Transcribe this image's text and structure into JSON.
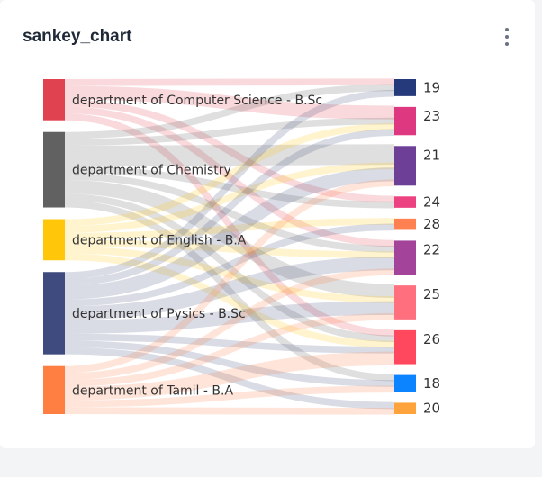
{
  "card": {
    "title": "sankey_chart",
    "menu_icon": "more-vertical-icon"
  },
  "chart_data": {
    "type": "sankey",
    "title": "sankey_chart",
    "sources": [
      {
        "name": "department of Computer Science - B.Sc",
        "color": "#e0424f"
      },
      {
        "name": "department of Chemistry",
        "color": "#616161"
      },
      {
        "name": "department of English - B.A",
        "color": "#ffc60a"
      },
      {
        "name": "department of Pysics - B.Sc",
        "color": "#3f4a7e"
      },
      {
        "name": "department of Tamil - B.A",
        "color": "#ff7f43"
      }
    ],
    "targets": [
      {
        "name": "19",
        "color": "#253a7a"
      },
      {
        "name": "23",
        "color": "#de3880"
      },
      {
        "name": "21",
        "color": "#6d3f96"
      },
      {
        "name": "24",
        "color": "#ec4282"
      },
      {
        "name": "28",
        "color": "#ff8152"
      },
      {
        "name": "22",
        "color": "#a4439a"
      },
      {
        "name": "25",
        "color": "#ff6f7d"
      },
      {
        "name": "26",
        "color": "#ff475d"
      },
      {
        "name": "18",
        "color": "#0d84ff"
      },
      {
        "name": "20",
        "color": "#ffa43c"
      }
    ],
    "links": [
      {
        "source": "department of Computer Science - B.Sc",
        "target": "19",
        "value": 0.5
      },
      {
        "source": "department of Computer Science - B.Sc",
        "target": "23",
        "value": 1
      },
      {
        "source": "department of Computer Science - B.Sc",
        "target": "24",
        "value": 0.5
      },
      {
        "source": "department of Computer Science - B.Sc",
        "target": "22",
        "value": 0.5
      },
      {
        "source": "department of Computer Science - B.Sc",
        "target": "26",
        "value": 0.5
      },
      {
        "source": "department of Chemistry",
        "target": "19",
        "value": 0.5
      },
      {
        "source": "department of Chemistry",
        "target": "23",
        "value": 0.5
      },
      {
        "source": "department of Chemistry",
        "target": "21",
        "value": 1.5
      },
      {
        "source": "department of Chemistry",
        "target": "24",
        "value": 0.5
      },
      {
        "source": "department of Chemistry",
        "target": "22",
        "value": 0.5
      },
      {
        "source": "department of Chemistry",
        "target": "25",
        "value": 1
      },
      {
        "source": "department of Chemistry",
        "target": "26",
        "value": 0.5
      },
      {
        "source": "department of Chemistry",
        "target": "18",
        "value": 0.5
      },
      {
        "source": "department of English - B.A",
        "target": "23",
        "value": 0.5
      },
      {
        "source": "department of English - B.A",
        "target": "21",
        "value": 0.5
      },
      {
        "source": "department of English - B.A",
        "target": "28",
        "value": 0.5
      },
      {
        "source": "department of English - B.A",
        "target": "22",
        "value": 0.5
      },
      {
        "source": "department of English - B.A",
        "target": "25",
        "value": 0.5
      },
      {
        "source": "department of English - B.A",
        "target": "26",
        "value": 0.5
      },
      {
        "source": "department of Pysics - B.Sc",
        "target": "19",
        "value": 0.5
      },
      {
        "source": "department of Pysics - B.Sc",
        "target": "23",
        "value": 0.5
      },
      {
        "source": "department of Pysics - B.Sc",
        "target": "21",
        "value": 1
      },
      {
        "source": "department of Pysics - B.Sc",
        "target": "28",
        "value": 0.5
      },
      {
        "source": "department of Pysics - B.Sc",
        "target": "22",
        "value": 1
      },
      {
        "source": "department of Pysics - B.Sc",
        "target": "25",
        "value": 1
      },
      {
        "source": "department of Pysics - B.Sc",
        "target": "26",
        "value": 0.5
      },
      {
        "source": "department of Pysics - B.Sc",
        "target": "18",
        "value": 0.5
      },
      {
        "source": "department of Pysics - B.Sc",
        "target": "20",
        "value": 0.5
      },
      {
        "source": "department of Tamil - B.A",
        "target": "21",
        "value": 0.5
      },
      {
        "source": "department of Tamil - B.A",
        "target": "22",
        "value": 0.5
      },
      {
        "source": "department of Tamil - B.A",
        "target": "25",
        "value": 0.5
      },
      {
        "source": "department of Tamil - B.A",
        "target": "26",
        "value": 1
      },
      {
        "source": "department of Tamil - B.A",
        "target": "18",
        "value": 0.5
      },
      {
        "source": "department of Tamil - B.A",
        "target": "20",
        "value": 0.5
      }
    ]
  }
}
